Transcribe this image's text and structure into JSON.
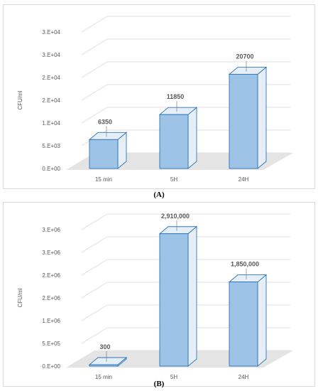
{
  "colors": {
    "bar_front": "#9dc3e6",
    "bar_side": "#e6eef7",
    "bar_stroke": "#2e75b6",
    "floor": "#e4e4e4",
    "gridline": "#d9d9d9",
    "text": "#595959"
  },
  "captions": {
    "a": "(A)",
    "b": "(B)"
  },
  "chart_data": [
    {
      "type": "bar",
      "ylabel": "CFU/ml",
      "categories": [
        "15 min",
        "5H",
        "24H"
      ],
      "values": [
        6350,
        11850,
        20700
      ],
      "data_labels": [
        "6350",
        "11850",
        "20700"
      ],
      "yticks": [
        0,
        5000,
        10000,
        15000,
        20000,
        25000,
        30000
      ],
      "ytick_labels": [
        "0.E+00",
        "5.E+03",
        "1.E+04",
        "2.E+04",
        "2.E+04",
        "3.E+04",
        "3.E+04"
      ],
      "ylim": [
        0,
        30000
      ],
      "grid": true,
      "style": "3d-column"
    },
    {
      "type": "bar",
      "ylabel": "CFU/ml",
      "categories": [
        "15 min",
        "5H",
        "24H"
      ],
      "values": [
        300,
        2910000,
        1850000
      ],
      "data_labels": [
        "300",
        "2,910,000",
        "1,850,000"
      ],
      "yticks": [
        0,
        500000,
        1000000,
        1500000,
        2000000,
        2500000,
        3000000
      ],
      "ytick_labels": [
        "0.E+00",
        "5.E+05",
        "1.E+06",
        "2.E+06",
        "2.E+06",
        "3.E+06",
        "3.E+06"
      ],
      "ylim": [
        0,
        3000000
      ],
      "grid": true,
      "style": "3d-column"
    }
  ]
}
